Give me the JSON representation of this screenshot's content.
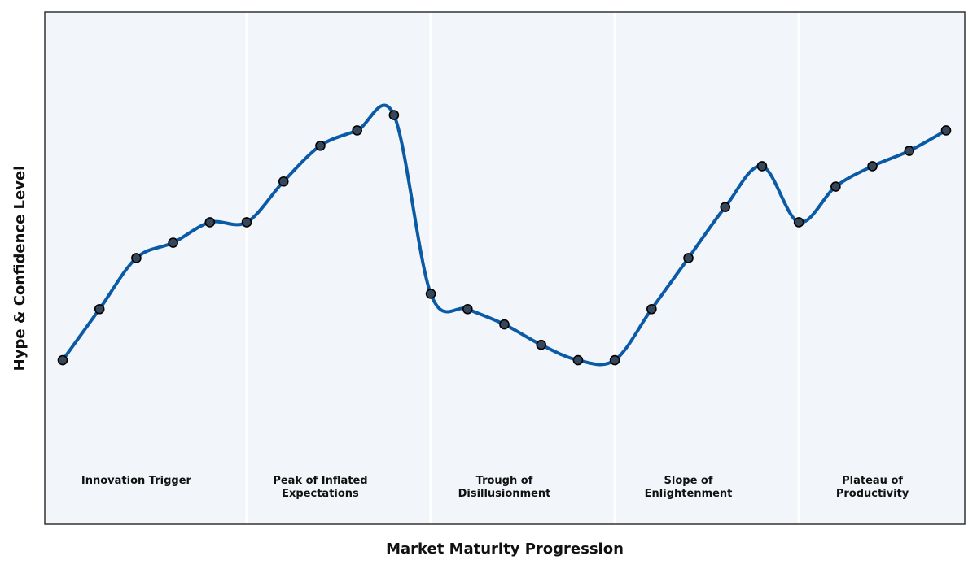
{
  "chart_data": {
    "type": "line",
    "title": "",
    "xlabel": "Market Maturity Progression",
    "ylabel": "Hype & Confidence Level",
    "grid": false,
    "x_ticks_shown": false,
    "y_ticks_shown": false,
    "ylim": [
      0,
      100
    ],
    "colors": {
      "line": "#0a5aa5",
      "marker_fill": "#37475a",
      "marker_edge": "#000000",
      "background": "#f2f6fa",
      "separator": "#ffffff",
      "frame": "#333333"
    },
    "phases": [
      {
        "lines": [
          "Innovation Trigger"
        ]
      },
      {
        "lines": [
          "Peak of Inflated",
          "Expectations"
        ]
      },
      {
        "lines": [
          "Trough of",
          "Disillusionment"
        ]
      },
      {
        "lines": [
          "Slope of",
          "Enlightenment"
        ]
      },
      {
        "lines": [
          "Plateau of",
          "Productivity"
        ]
      }
    ],
    "series": [
      {
        "values": [
          32,
          42,
          52,
          55,
          59,
          59,
          67,
          74,
          77,
          80,
          45,
          42,
          39,
          35,
          32,
          32,
          42,
          52,
          62,
          70,
          59,
          66,
          70,
          73,
          77
        ]
      }
    ]
  }
}
